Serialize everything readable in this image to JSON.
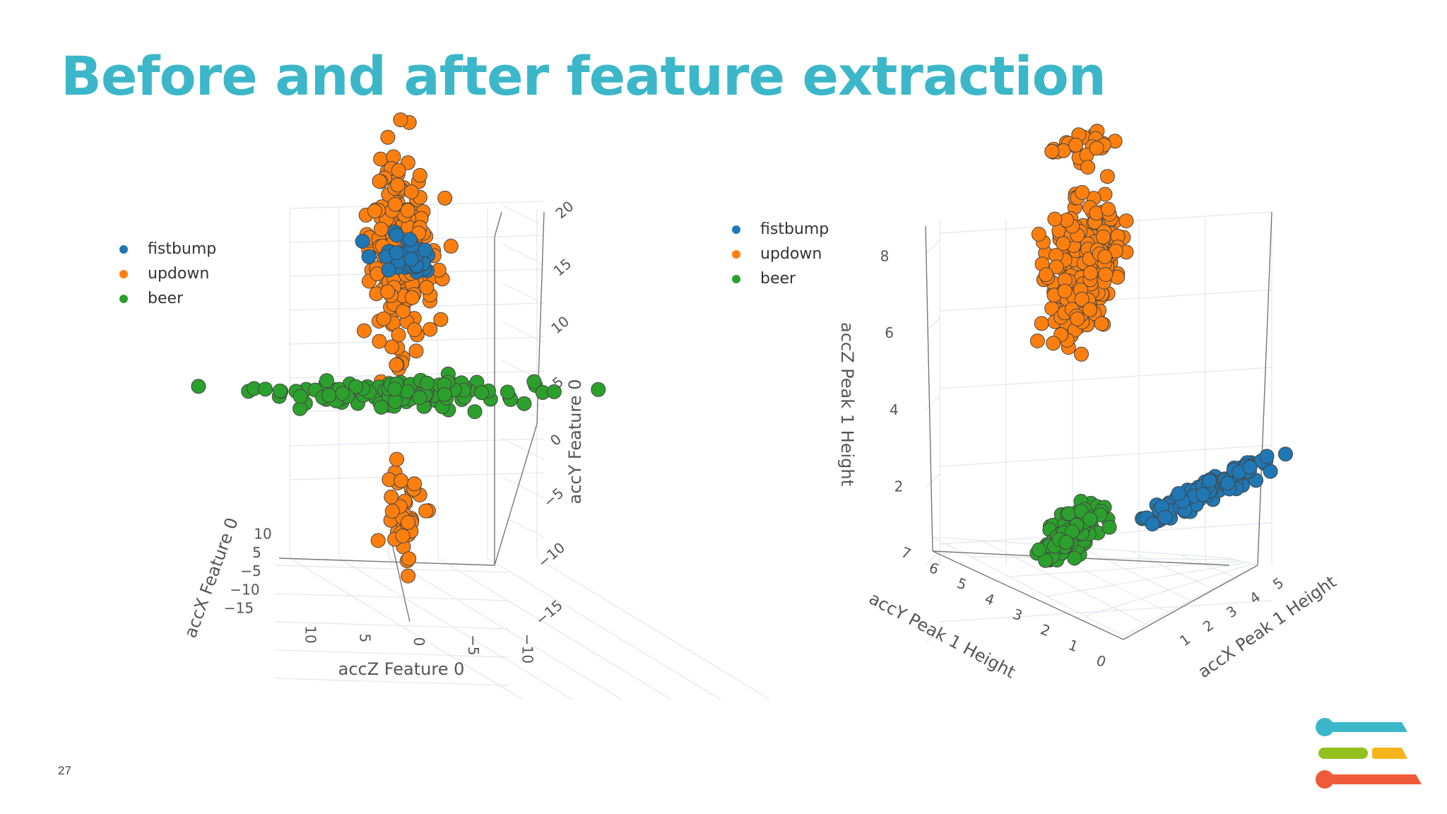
{
  "slide": {
    "title": "Before and after feature extraction",
    "page_number": "27",
    "title_color": "#3cb7c9"
  },
  "colors": {
    "fistbump": "#1f77b4",
    "updown": "#ff7f0e",
    "beer": "#2ca02c",
    "logo_top": "#3cb7c9",
    "logo_mid_left": "#93c01f",
    "logo_mid_right": "#f5b41e",
    "logo_bottom": "#ef5a38"
  },
  "chart_data": [
    {
      "type": "scatter3d",
      "legend": [
        "fistbump",
        "updown",
        "beer"
      ],
      "legend_placement": "top-left",
      "axes": {
        "x": {
          "label": "accZ Feature 0",
          "ticks": [
            "10",
            "5",
            "0",
            "−5",
            "−10"
          ]
        },
        "y": {
          "label": "accX Feature 0",
          "ticks": [
            "10",
            "5",
            "−5",
            "−10",
            "−15"
          ]
        },
        "z": {
          "label": "accY Feature 0",
          "ticks": [
            "20",
            "15",
            "10",
            "5",
            "0",
            "−5",
            "−10",
            "−15"
          ]
        }
      },
      "grid": true,
      "series": [
        {
          "name": "fistbump",
          "clusters": [
            {
              "x": 0,
              "y": 0,
              "z": 10,
              "spread": [
                3,
                2,
                1.5
              ],
              "n": 30
            }
          ]
        },
        {
          "name": "updown",
          "clusters": [
            {
              "x": 0,
              "y": 0,
              "z": 10,
              "spread": [
                2.5,
                2,
                6
              ],
              "n": 220
            },
            {
              "x": 0,
              "y": 0,
              "z": -6,
              "spread": [
                1.5,
                1.5,
                4
              ],
              "n": 40
            }
          ]
        },
        {
          "name": "beer",
          "clusters": [
            {
              "x": 0,
              "y": 0,
              "z": 1.5,
              "spread": [
                11,
                2,
                0.8
              ],
              "n": 130
            }
          ]
        }
      ]
    },
    {
      "type": "scatter3d",
      "legend": [
        "fistbump",
        "updown",
        "beer"
      ],
      "legend_placement": "top-left",
      "axes": {
        "x": {
          "label": "accX Peak 1 Height",
          "ticks": [
            "1",
            "2",
            "3",
            "4",
            "5"
          ]
        },
        "y": {
          "label": "accY Peak 1 Height",
          "ticks": [
            "0",
            "1",
            "2",
            "3",
            "4",
            "5",
            "6",
            "7"
          ]
        },
        "z": {
          "label": "accZ Peak 1 Height",
          "ticks": [
            "2",
            "4",
            "6",
            "8"
          ]
        }
      },
      "grid": true,
      "series": [
        {
          "name": "fistbump",
          "clusters": [
            {
              "x": 3.5,
              "y": 1,
              "z": 0.2,
              "spread": [
                1.5,
                0.5,
                0.2
              ],
              "n": 120
            }
          ]
        },
        {
          "name": "updown",
          "clusters": [
            {
              "x": 1.5,
              "y": 3.5,
              "z": 5.5,
              "spread": [
                0.8,
                0.8,
                1.2
              ],
              "n": 260
            },
            {
              "x": 1.5,
              "y": 3.5,
              "z": 7.8,
              "spread": [
                0.8,
                1,
                0.5
              ],
              "n": 25
            }
          ]
        },
        {
          "name": "beer",
          "clusters": [
            {
              "x": 1,
              "y": 3,
              "z": 0.6,
              "spread": [
                0.6,
                1.2,
                0.4
              ],
              "n": 120
            }
          ]
        }
      ]
    }
  ]
}
